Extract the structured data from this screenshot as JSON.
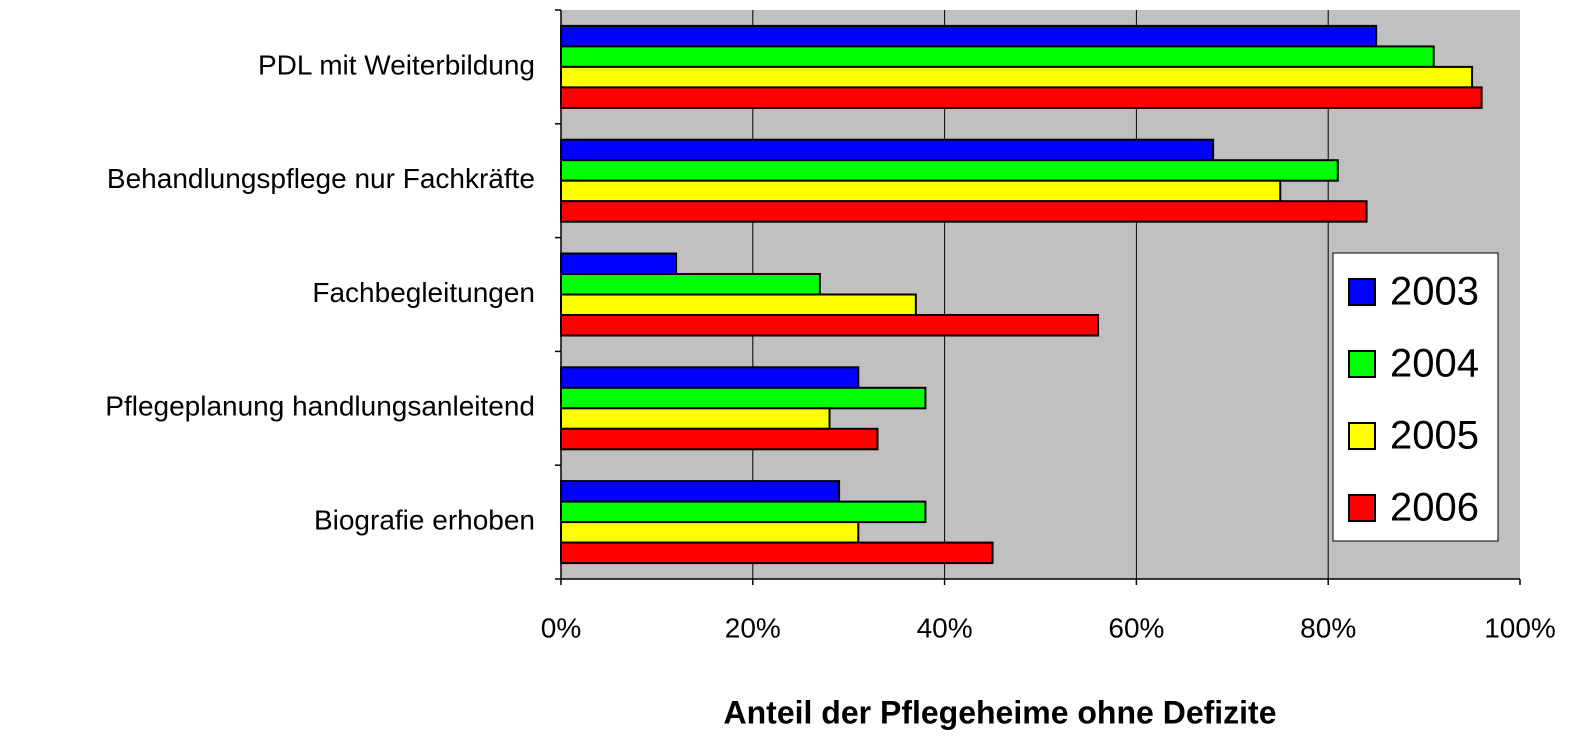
{
  "chart_data": {
    "type": "bar",
    "orientation": "horizontal",
    "xlabel": "Anteil der Pflegeheime ohne Defizite",
    "categories": [
      "PDL mit Weiterbildung",
      "Behandlungspflege nur Fachkräfte",
      "Fachbegleitungen",
      "Pflegeplanung handlungsanleitend",
      "Biografie erhoben"
    ],
    "series": [
      {
        "name": "2003",
        "color": "#0000ff",
        "values": [
          85,
          68,
          12,
          31,
          29
        ]
      },
      {
        "name": "2004",
        "color": "#00ff00",
        "values": [
          91,
          81,
          27,
          38,
          38
        ]
      },
      {
        "name": "2005",
        "color": "#ffff00",
        "values": [
          95,
          75,
          37,
          28,
          31
        ]
      },
      {
        "name": "2006",
        "color": "#ff0000",
        "values": [
          96,
          84,
          56,
          33,
          45
        ]
      }
    ],
    "xlim": [
      0,
      100
    ],
    "xticks": [
      {
        "value": 0,
        "label": "0%"
      },
      {
        "value": 20,
        "label": "20%"
      },
      {
        "value": 40,
        "label": "40%"
      },
      {
        "value": 60,
        "label": "60%"
      },
      {
        "value": 80,
        "label": "80%"
      },
      {
        "value": 100,
        "label": "100%"
      }
    ],
    "grid": true,
    "legend": "right"
  }
}
